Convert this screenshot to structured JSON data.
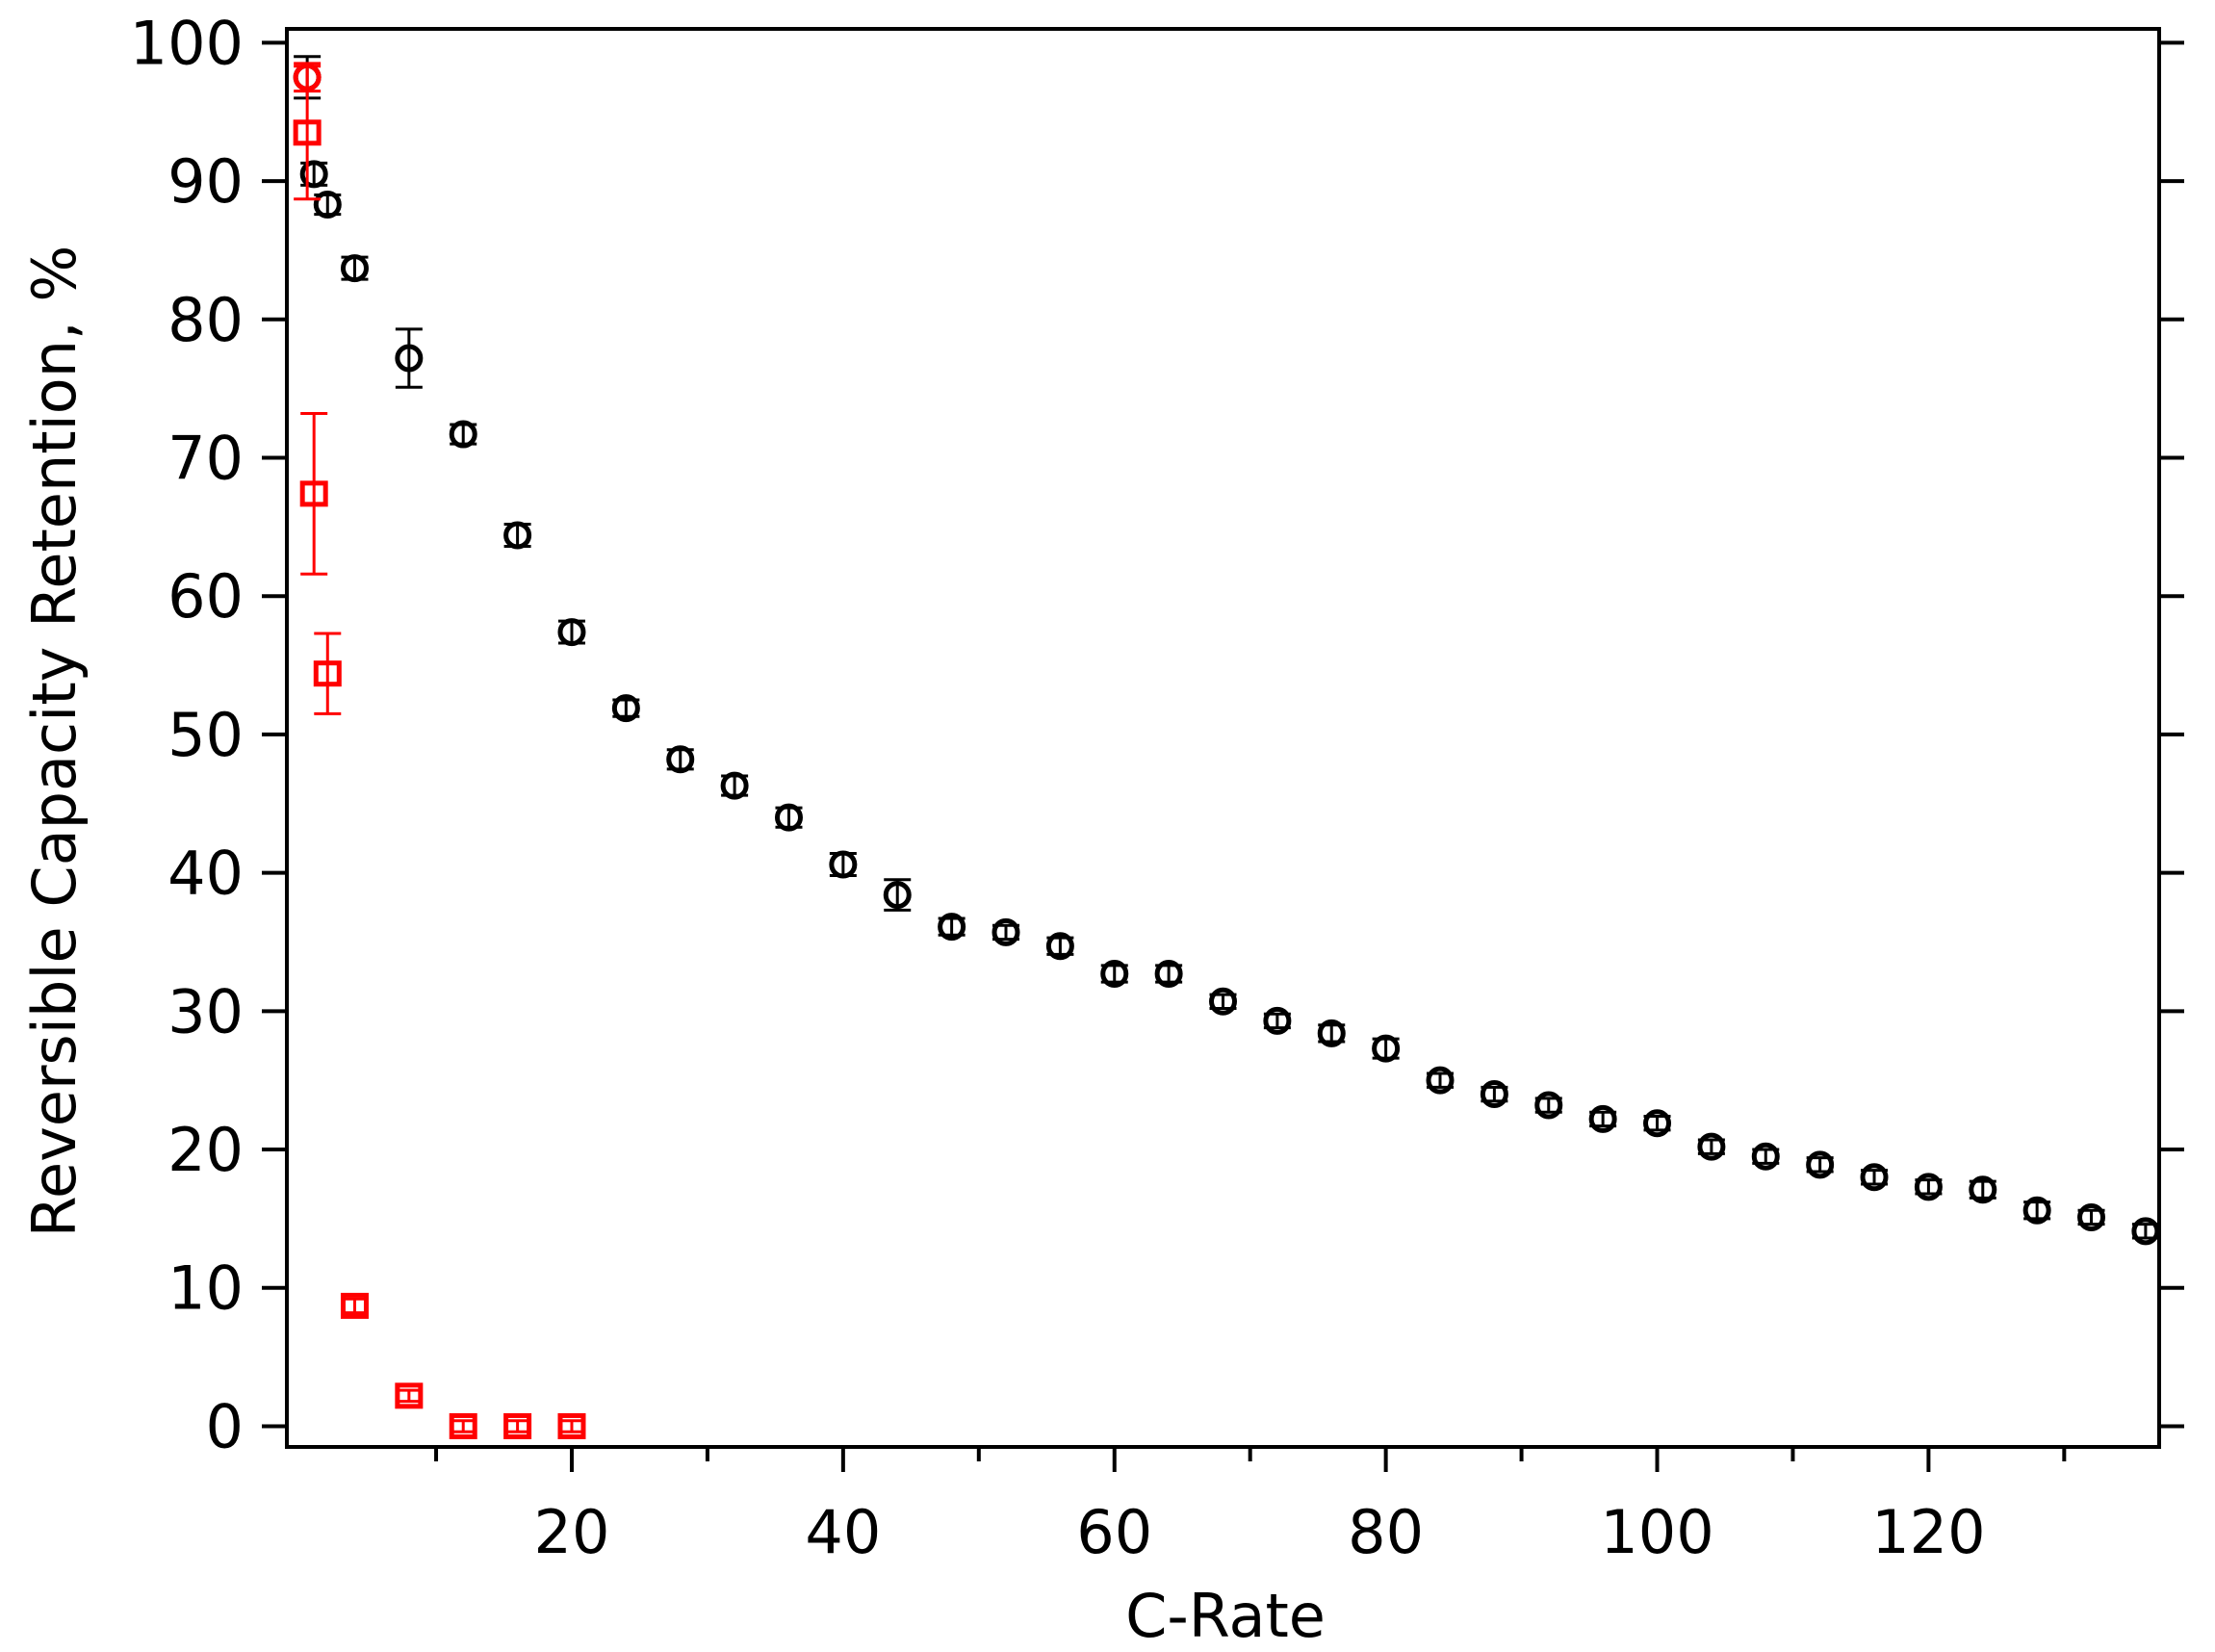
{
  "chart_data": {
    "type": "scatter",
    "xlabel": "C-Rate",
    "ylabel": "Reversible Capacity Retention, %",
    "xlim": [
      -1,
      137
    ],
    "ylim": [
      -1.5,
      101
    ],
    "x_ticks": [
      20,
      40,
      60,
      80,
      100,
      120
    ],
    "x_minor_ticks": [
      10,
      30,
      50,
      70,
      90,
      110,
      130
    ],
    "y_ticks": [
      0,
      10,
      20,
      30,
      40,
      50,
      60,
      70,
      80,
      90,
      100
    ],
    "grid": false,
    "legend": false,
    "series": [
      {
        "marker": "circle",
        "color": "#000000",
        "points": [
          {
            "x": 0.5,
            "y": 97.5,
            "err": 1.5
          },
          {
            "x": 1,
            "y": 90.5,
            "err": 0.8
          },
          {
            "x": 2,
            "y": 88.3,
            "err": 0.7
          },
          {
            "x": 4,
            "y": 83.7,
            "err": 0.8
          },
          {
            "x": 8,
            "y": 77.2,
            "err": 2.1
          },
          {
            "x": 12,
            "y": 71.7,
            "err": 0.7
          },
          {
            "x": 16,
            "y": 64.4,
            "err": 0.8
          },
          {
            "x": 20,
            "y": 57.4,
            "err": 0.8
          },
          {
            "x": 24,
            "y": 51.9,
            "err": 0.6
          },
          {
            "x": 28,
            "y": 48.2,
            "err": 0.7
          },
          {
            "x": 32,
            "y": 46.3,
            "err": 0.7
          },
          {
            "x": 36,
            "y": 44.0,
            "err": 0.7
          },
          {
            "x": 40,
            "y": 40.6,
            "err": 0.8
          },
          {
            "x": 44,
            "y": 38.4,
            "err": 1.1
          },
          {
            "x": 48,
            "y": 36.1,
            "err": 0.6
          },
          {
            "x": 52,
            "y": 35.7,
            "err": 0.5
          },
          {
            "x": 56,
            "y": 34.7,
            "err": 0.6
          },
          {
            "x": 60,
            "y": 32.7,
            "err": 0.6
          },
          {
            "x": 64,
            "y": 32.7,
            "err": 0.6
          },
          {
            "x": 68,
            "y": 30.7,
            "err": 0.5
          },
          {
            "x": 72,
            "y": 29.3,
            "err": 0.5
          },
          {
            "x": 76,
            "y": 28.4,
            "err": 0.6
          },
          {
            "x": 80,
            "y": 27.3,
            "err": 0.7
          },
          {
            "x": 84,
            "y": 25.0,
            "err": 0.5
          },
          {
            "x": 88,
            "y": 24.0,
            "err": 0.5
          },
          {
            "x": 92,
            "y": 23.2,
            "err": 0.5
          },
          {
            "x": 96,
            "y": 22.2,
            "err": 0.5
          },
          {
            "x": 100,
            "y": 21.9,
            "err": 0.5
          },
          {
            "x": 104,
            "y": 20.2,
            "err": 0.5
          },
          {
            "x": 108,
            "y": 19.5,
            "err": 0.5
          },
          {
            "x": 112,
            "y": 18.9,
            "err": 0.5
          },
          {
            "x": 116,
            "y": 18.0,
            "err": 0.5
          },
          {
            "x": 120,
            "y": 17.3,
            "err": 0.5
          },
          {
            "x": 124,
            "y": 17.1,
            "err": 0.6
          },
          {
            "x": 128,
            "y": 15.6,
            "err": 0.6
          },
          {
            "x": 132,
            "y": 15.1,
            "err": 0.5
          },
          {
            "x": 136,
            "y": 14.1,
            "err": 0.5
          }
        ]
      },
      {
        "marker": "square",
        "color": "#ff0000",
        "points": [
          {
            "x": 0.5,
            "y": 97.5,
            "err": 1.0,
            "marker": "circle"
          },
          {
            "x": 0.5,
            "y": 93.5,
            "err": 4.8
          },
          {
            "x": 1,
            "y": 67.4,
            "err": 5.8
          },
          {
            "x": 2,
            "y": 54.4,
            "err": 2.9
          },
          {
            "x": 4,
            "y": 8.7,
            "err": 0.5
          },
          {
            "x": 8,
            "y": 2.2,
            "err": 0.4
          },
          {
            "x": 12,
            "y": 0.0,
            "err": 0.4
          },
          {
            "x": 16,
            "y": 0.0,
            "err": 0.4
          },
          {
            "x": 20,
            "y": 0.0,
            "err": 0.4
          }
        ]
      }
    ]
  }
}
